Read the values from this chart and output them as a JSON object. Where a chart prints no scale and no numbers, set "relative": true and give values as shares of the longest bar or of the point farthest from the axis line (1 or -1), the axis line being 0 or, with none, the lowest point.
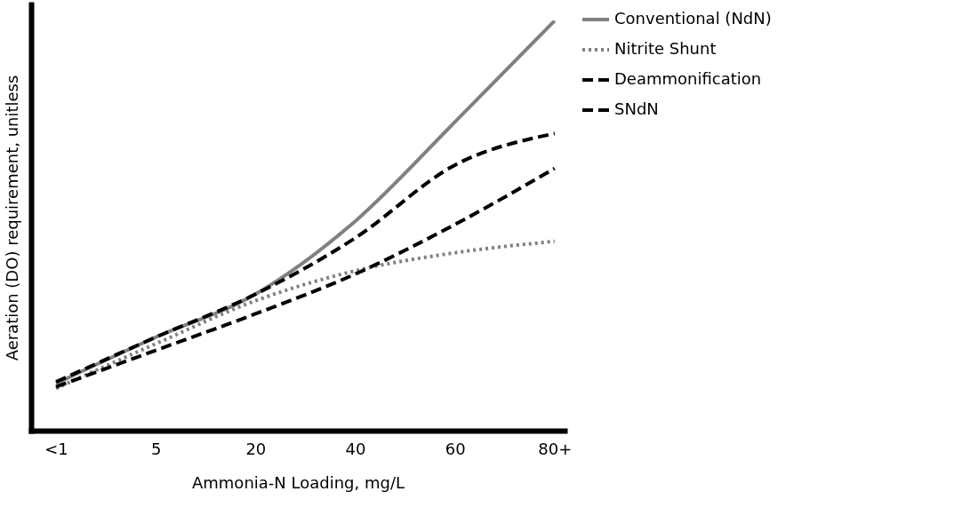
{
  "chart_data": {
    "type": "line",
    "relative": true,
    "xlabel": "Ammonia-N Loading, mg/L",
    "ylabel": "Aeration (DO) requirement, unitless",
    "categories": [
      "<1",
      "5",
      "20",
      "40",
      "60",
      "80+"
    ],
    "legend": "right",
    "grid": false,
    "marker": "none",
    "series": [
      {
        "name": "Conventional (NdN)",
        "color": "#808080",
        "line_style": "solid",
        "values": [
          0.115,
          0.228,
          0.333,
          0.511,
          0.753,
          1.0
        ]
      },
      {
        "name": "Nitrite Shunt",
        "color": "#808080",
        "line_style": "dotted",
        "values": [
          0.103,
          0.212,
          0.317,
          0.39,
          0.434,
          0.462
        ]
      },
      {
        "name": "Deammonification",
        "color": "#000000",
        "line_style": "dashed",
        "values": [
          0.107,
          0.196,
          0.285,
          0.382,
          0.503,
          0.64
        ]
      },
      {
        "name": "SNdN",
        "color": "#000000",
        "line_style": "dashed",
        "values": [
          0.119,
          0.228,
          0.333,
          0.47,
          0.648,
          0.725
        ]
      }
    ]
  }
}
